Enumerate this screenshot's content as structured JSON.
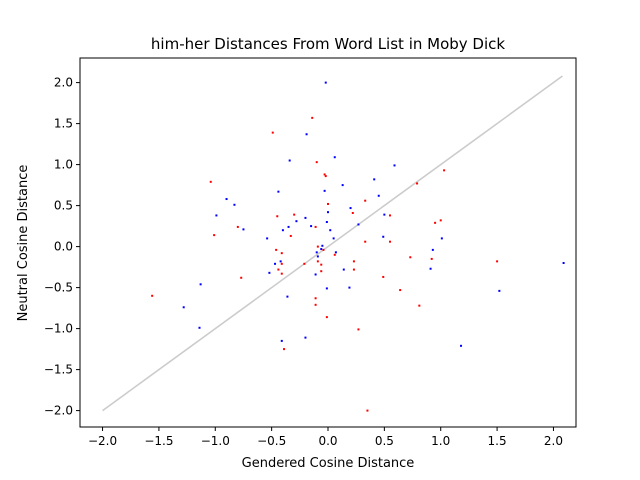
{
  "colors": {
    "background": "#ffffff",
    "axes": "#000000",
    "reference_line": "#cccccc",
    "series_blue": "#0000ff",
    "series_red": "#ff0000"
  },
  "chart_data": {
    "type": "scatter",
    "title": "him-her Distances From Word List in Moby Dick",
    "xlabel": "Gendered Cosine Distance",
    "ylabel": "Neutral Cosine Distance",
    "xlim": [
      -2.2,
      2.2
    ],
    "ylim": [
      -2.2,
      2.3
    ],
    "xticks": [
      -2.0,
      -1.5,
      -1.0,
      -0.5,
      0.0,
      0.5,
      1.0,
      1.5,
      2.0
    ],
    "xtick_labels": [
      "−2.0",
      "−1.5",
      "−1.0",
      "−0.5",
      "0.0",
      "0.5",
      "1.0",
      "1.5",
      "2.0"
    ],
    "yticks": [
      -2.0,
      -1.5,
      -1.0,
      -0.5,
      0.0,
      0.5,
      1.0,
      1.5,
      2.0
    ],
    "ytick_labels": [
      "−2.0",
      "−1.5",
      "−1.0",
      "−0.5",
      "0.0",
      "0.5",
      "1.0",
      "1.5",
      "2.0"
    ],
    "reference_line": {
      "name": "identity",
      "x": [
        -2.0,
        2.08
      ],
      "y": [
        -2.0,
        2.08
      ],
      "color": "#cccccc"
    },
    "series": [
      {
        "name": "blue",
        "color": "#0000ff",
        "points": [
          [
            -0.02,
            2.0
          ],
          [
            -0.19,
            1.37
          ],
          [
            0.06,
            1.09
          ],
          [
            -0.34,
            1.05
          ],
          [
            0.59,
            0.99
          ],
          [
            0.13,
            0.75
          ],
          [
            -0.44,
            0.67
          ],
          [
            -0.03,
            0.68
          ],
          [
            0.41,
            0.82
          ],
          [
            0.45,
            0.62
          ],
          [
            -0.9,
            0.58
          ],
          [
            -0.83,
            0.51
          ],
          [
            -0.99,
            0.38
          ],
          [
            -0.75,
            0.21
          ],
          [
            -0.2,
            0.35
          ],
          [
            -0.28,
            0.31
          ],
          [
            -0.35,
            0.24
          ],
          [
            -0.4,
            0.2
          ],
          [
            -0.15,
            0.25
          ],
          [
            0.0,
            0.42
          ],
          [
            -0.01,
            0.3
          ],
          [
            0.02,
            0.2
          ],
          [
            0.05,
            0.1
          ],
          [
            -0.05,
            0.01
          ],
          [
            -0.06,
            -0.03
          ],
          [
            -0.1,
            -0.07
          ],
          [
            -0.09,
            -0.12
          ],
          [
            0.2,
            0.47
          ],
          [
            0.27,
            0.27
          ],
          [
            0.5,
            0.39
          ],
          [
            0.07,
            -0.07
          ],
          [
            0.14,
            -0.28
          ],
          [
            0.49,
            0.12
          ],
          [
            0.93,
            -0.04
          ],
          [
            1.01,
            0.1
          ],
          [
            -0.54,
            0.1
          ],
          [
            -0.42,
            -0.18
          ],
          [
            -0.47,
            -0.21
          ],
          [
            -0.52,
            -0.32
          ],
          [
            -0.11,
            -0.34
          ],
          [
            -0.36,
            -0.61
          ],
          [
            -0.01,
            -0.51
          ],
          [
            0.19,
            -0.5
          ],
          [
            0.91,
            -0.27
          ],
          [
            -1.13,
            -0.46
          ],
          [
            -1.28,
            -0.74
          ],
          [
            -1.14,
            -0.99
          ],
          [
            -0.2,
            -1.11
          ],
          [
            -0.41,
            -1.15
          ],
          [
            1.52,
            -0.54
          ],
          [
            1.18,
            -1.21
          ],
          [
            2.09,
            -0.2
          ]
        ]
      },
      {
        "name": "red",
        "color": "#ff0000",
        "points": [
          [
            -0.14,
            1.57
          ],
          [
            -0.49,
            1.39
          ],
          [
            -0.1,
            1.03
          ],
          [
            -0.03,
            0.88
          ],
          [
            -0.02,
            0.86
          ],
          [
            -1.04,
            0.79
          ],
          [
            0.79,
            0.77
          ],
          [
            1.03,
            0.93
          ],
          [
            0.33,
            0.56
          ],
          [
            0.0,
            0.52
          ],
          [
            -0.45,
            0.37
          ],
          [
            -0.3,
            0.39
          ],
          [
            0.22,
            0.41
          ],
          [
            0.55,
            0.38
          ],
          [
            0.95,
            0.29
          ],
          [
            1.0,
            0.32
          ],
          [
            -0.8,
            0.24
          ],
          [
            -1.01,
            0.14
          ],
          [
            -0.33,
            0.13
          ],
          [
            -0.11,
            0.24
          ],
          [
            0.33,
            0.06
          ],
          [
            0.55,
            0.06
          ],
          [
            -0.46,
            -0.04
          ],
          [
            -0.09,
            0.0
          ],
          [
            -0.04,
            -0.04
          ],
          [
            -0.41,
            -0.08
          ],
          [
            0.06,
            -0.1
          ],
          [
            0.73,
            -0.13
          ],
          [
            0.92,
            -0.15
          ],
          [
            -0.09,
            -0.18
          ],
          [
            -0.41,
            -0.21
          ],
          [
            -0.21,
            -0.21
          ],
          [
            -0.06,
            -0.22
          ],
          [
            0.23,
            -0.18
          ],
          [
            1.5,
            -0.18
          ],
          [
            -0.44,
            -0.28
          ],
          [
            -0.06,
            -0.3
          ],
          [
            0.23,
            -0.28
          ],
          [
            0.49,
            -0.37
          ],
          [
            -0.77,
            -0.38
          ],
          [
            -0.41,
            -0.33
          ],
          [
            0.64,
            -0.53
          ],
          [
            -1.56,
            -0.6
          ],
          [
            -0.11,
            -0.63
          ],
          [
            -0.11,
            -0.71
          ],
          [
            0.81,
            -0.72
          ],
          [
            -0.01,
            -0.86
          ],
          [
            0.27,
            -1.01
          ],
          [
            -0.39,
            -1.25
          ],
          [
            0.35,
            -2.0
          ]
        ]
      }
    ]
  }
}
